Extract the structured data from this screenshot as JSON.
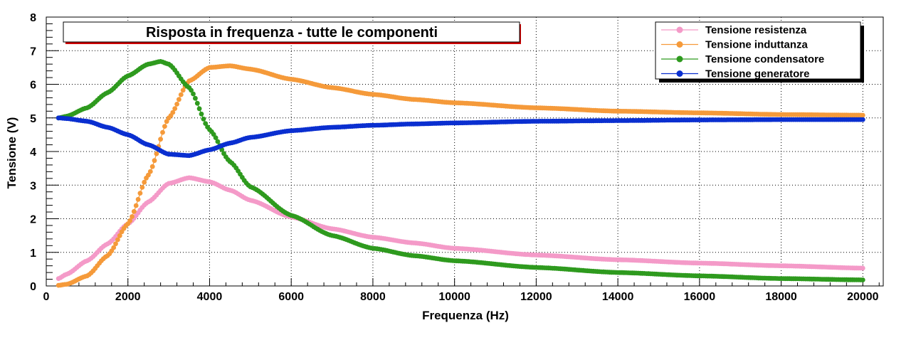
{
  "chart_data": {
    "type": "line",
    "title": "Risposta in frequenza - tutte le componenti",
    "xlabel": "Frequenza (Hz)",
    "ylabel": "Tensione (V)",
    "xlim": [
      0,
      20500
    ],
    "ylim": [
      0,
      8
    ],
    "x_ticks": [
      0,
      2000,
      4000,
      6000,
      8000,
      10000,
      12000,
      14000,
      16000,
      18000,
      20000
    ],
    "y_ticks": [
      0,
      1,
      2,
      3,
      4,
      5,
      6,
      7,
      8
    ],
    "grid": true,
    "legend_position": "top-right",
    "series": [
      {
        "name": "Tensione resistenza",
        "color": "#f49ac8",
        "x": [
          300,
          500,
          1000,
          1500,
          2000,
          2500,
          3000,
          3500,
          4000,
          4500,
          5000,
          6000,
          7000,
          8000,
          9000,
          10000,
          12000,
          14000,
          16000,
          18000,
          20000
        ],
        "y": [
          0.22,
          0.35,
          0.75,
          1.25,
          1.85,
          2.5,
          3.05,
          3.22,
          3.1,
          2.85,
          2.55,
          2.05,
          1.7,
          1.45,
          1.28,
          1.12,
          0.92,
          0.78,
          0.68,
          0.6,
          0.53
        ]
      },
      {
        "name": "Tensione induttanza",
        "color": "#f59a3a",
        "x": [
          300,
          500,
          1000,
          1500,
          2000,
          2500,
          3000,
          3500,
          4000,
          4500,
          5000,
          6000,
          7000,
          8000,
          9000,
          10000,
          12000,
          14000,
          16000,
          18000,
          20000
        ],
        "y": [
          0.02,
          0.05,
          0.3,
          0.9,
          1.85,
          3.3,
          5.0,
          6.1,
          6.5,
          6.55,
          6.45,
          6.15,
          5.9,
          5.7,
          5.55,
          5.45,
          5.3,
          5.2,
          5.15,
          5.1,
          5.08
        ]
      },
      {
        "name": "Tensione condensatore",
        "color": "#2e9a1e",
        "x": [
          300,
          500,
          1000,
          1500,
          2000,
          2500,
          2800,
          3000,
          3500,
          4000,
          4500,
          5000,
          6000,
          7000,
          8000,
          9000,
          10000,
          12000,
          14000,
          16000,
          18000,
          20000
        ],
        "y": [
          5.0,
          5.05,
          5.3,
          5.75,
          6.25,
          6.6,
          6.68,
          6.6,
          5.9,
          4.65,
          3.7,
          2.95,
          2.1,
          1.5,
          1.12,
          0.9,
          0.75,
          0.55,
          0.4,
          0.3,
          0.22,
          0.18
        ]
      },
      {
        "name": "Tensione generatore",
        "color": "#0a2fd0",
        "x": [
          300,
          500,
          1000,
          1500,
          2000,
          2500,
          3000,
          3500,
          4000,
          4500,
          5000,
          6000,
          7000,
          8000,
          9000,
          10000,
          12000,
          14000,
          16000,
          18000,
          20000
        ],
        "y": [
          5.0,
          4.98,
          4.9,
          4.72,
          4.5,
          4.2,
          3.92,
          3.88,
          4.05,
          4.25,
          4.42,
          4.62,
          4.72,
          4.78,
          4.82,
          4.85,
          4.9,
          4.92,
          4.94,
          4.95,
          4.95
        ]
      }
    ]
  }
}
